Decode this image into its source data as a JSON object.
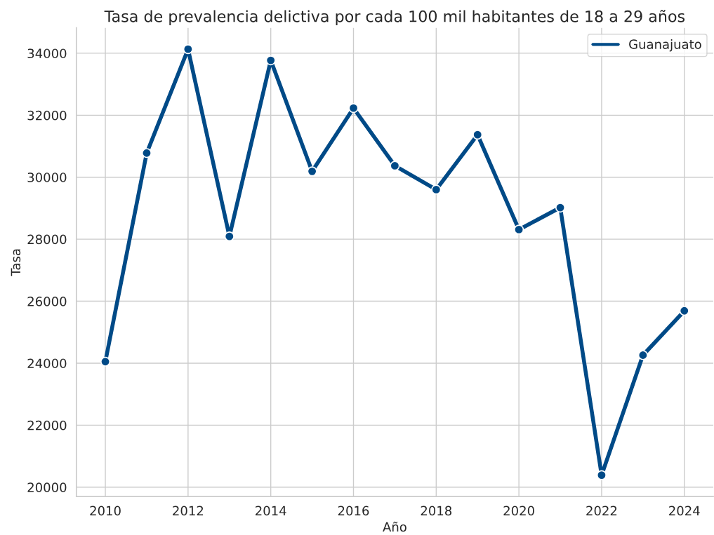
{
  "chart_data": {
    "type": "line",
    "title": "Tasa de prevalencia delictiva por cada 100 mil habitantes de 18 a 29 años",
    "xlabel": "Año",
    "ylabel": "Tasa",
    "x": [
      2010,
      2011,
      2012,
      2013,
      2014,
      2015,
      2016,
      2017,
      2018,
      2019,
      2020,
      2021,
      2022,
      2023,
      2024
    ],
    "series": [
      {
        "name": "Guanajuato",
        "color": "#004a87",
        "values": [
          24050,
          30780,
          34130,
          28090,
          33770,
          30190,
          32230,
          30370,
          29600,
          31370,
          28310,
          29020,
          20390,
          24260,
          25690
        ]
      }
    ],
    "xlim": [
      2009.3,
      2024.7
    ],
    "xticks": [
      2010,
      2012,
      2014,
      2016,
      2018,
      2020,
      2022,
      2024
    ],
    "ylim": [
      19700,
      34820
    ],
    "yticks": [
      20000,
      22000,
      24000,
      26000,
      28000,
      30000,
      32000,
      34000
    ],
    "grid": true,
    "legend": "top right",
    "marker": "circle",
    "line_style": "solid"
  }
}
